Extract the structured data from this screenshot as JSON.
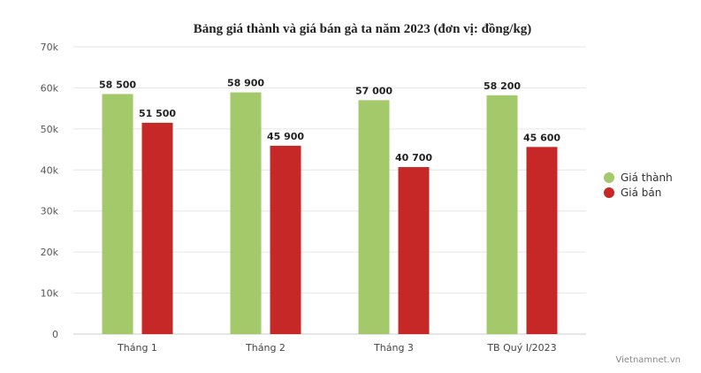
{
  "chart_data": {
    "type": "bar",
    "title": "Bảng giá thành và giá bán gà ta năm 2023 (đơn vị: đồng/kg)",
    "categories": [
      "Tháng 1",
      "Tháng 2",
      "Tháng 3",
      "TB Quý I/2023"
    ],
    "series": [
      {
        "name": "Giá thành",
        "color": "#a3c96a",
        "values": [
          58500,
          58900,
          57000,
          58200
        ],
        "labels": [
          "58 500",
          "58 900",
          "57 000",
          "58 200"
        ]
      },
      {
        "name": "Giá bán",
        "color": "#c62828",
        "values": [
          51500,
          45900,
          40700,
          45600
        ],
        "labels": [
          "51 500",
          "45 900",
          "40 700",
          "45 600"
        ]
      }
    ],
    "ylim": [
      0,
      70000
    ],
    "yticks": [
      0,
      10000,
      20000,
      30000,
      40000,
      50000,
      60000,
      70000
    ],
    "ytick_labels": [
      "0",
      "10k",
      "20k",
      "30k",
      "40k",
      "50k",
      "60k",
      "70k"
    ],
    "grid": true,
    "legend_position": "right"
  },
  "credit": "Vietnamnet.vn"
}
